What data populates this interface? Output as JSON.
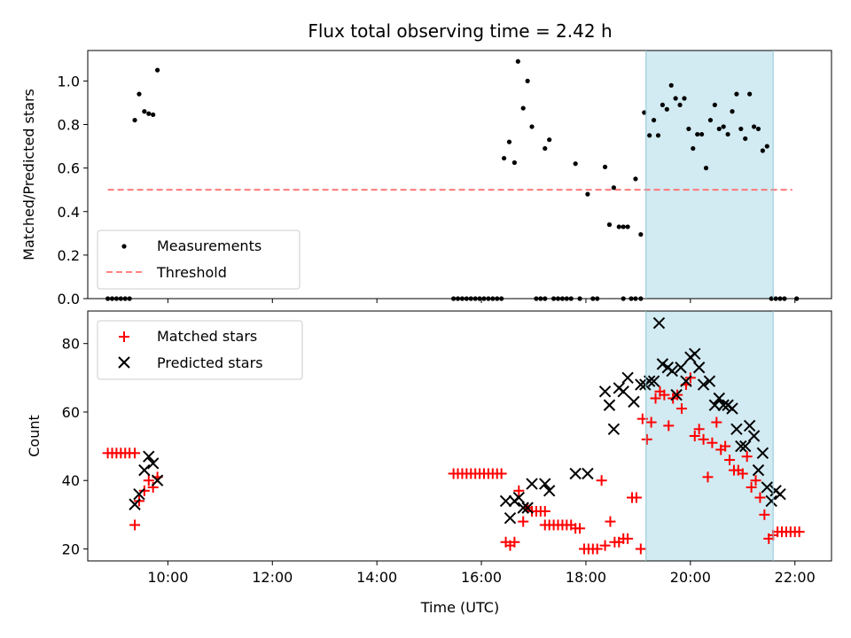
{
  "title": "Flux total observing time = 2.42 h",
  "xlabel": "Time (UTC)",
  "x_ticks": [
    "10:00",
    "12:00",
    "14:00",
    "16:00",
    "18:00",
    "20:00",
    "22:00"
  ],
  "colors": {
    "measurements": "#000000",
    "threshold": "#ff7070",
    "matched": "#ff0000",
    "predicted": "#000000",
    "highlight": "#add8e6"
  },
  "chart_data": [
    {
      "type": "scatter",
      "ylabel": "Matched/Predicted stars",
      "xlim": [
        "08:28",
        "22:42"
      ],
      "ylim": [
        0,
        1.14
      ],
      "y_ticks": [
        "0.0",
        "0.2",
        "0.4",
        "0.6",
        "0.8",
        "1.0"
      ],
      "highlight_span": [
        "19:09",
        "21:35"
      ],
      "legend": {
        "position": "lower-left",
        "entries": [
          "Measurements",
          "Threshold"
        ]
      },
      "threshold": {
        "name": "Threshold",
        "y": 0.5,
        "x_range": [
          "08:51",
          "21:57"
        ]
      },
      "series": [
        {
          "name": "Measurements",
          "points": [
            [
              "08:51",
              0
            ],
            [
              "08:56",
              0
            ],
            [
              "09:01",
              0
            ],
            [
              "09:06",
              0
            ],
            [
              "09:11",
              0
            ],
            [
              "09:16",
              0
            ],
            [
              "09:22",
              0.82
            ],
            [
              "09:27",
              0.94
            ],
            [
              "09:33",
              0.86
            ],
            [
              "09:38",
              0.85
            ],
            [
              "09:43",
              0.845
            ],
            [
              "09:48",
              1.05
            ],
            [
              "15:28",
              0
            ],
            [
              "15:33",
              0
            ],
            [
              "15:38",
              0
            ],
            [
              "15:43",
              0
            ],
            [
              "15:48",
              0
            ],
            [
              "15:53",
              0
            ],
            [
              "15:58",
              0
            ],
            [
              "16:03",
              0
            ],
            [
              "16:08",
              0
            ],
            [
              "16:13",
              0
            ],
            [
              "16:18",
              0
            ],
            [
              "16:23",
              0
            ],
            [
              "16:26",
              0.645
            ],
            [
              "16:32",
              0.72
            ],
            [
              "16:38",
              0.625
            ],
            [
              "16:42",
              1.09
            ],
            [
              "16:48",
              0.875
            ],
            [
              "16:53",
              1.0
            ],
            [
              "16:58",
              0.79
            ],
            [
              "17:03",
              0
            ],
            [
              "17:08",
              0
            ],
            [
              "17:13",
              0
            ],
            [
              "17:13",
              0.69
            ],
            [
              "17:18",
              0.73
            ],
            [
              "17:23",
              0
            ],
            [
              "17:28",
              0
            ],
            [
              "17:33",
              0
            ],
            [
              "17:38",
              0
            ],
            [
              "17:43",
              0
            ],
            [
              "17:53",
              0
            ],
            [
              "17:48",
              0.62
            ],
            [
              "18:02",
              0.48
            ],
            [
              "18:08",
              0
            ],
            [
              "18:13",
              0
            ],
            [
              "18:22",
              0.605
            ],
            [
              "18:27",
              0.34
            ],
            [
              "18:32",
              0.51
            ],
            [
              "18:38",
              0.33
            ],
            [
              "18:43",
              0.33
            ],
            [
              "18:48",
              0.33
            ],
            [
              "18:43",
              0
            ],
            [
              "18:52",
              0
            ],
            [
              "18:57",
              0
            ],
            [
              "19:03",
              0
            ],
            [
              "18:57",
              0.55
            ],
            [
              "19:03",
              0.295
            ],
            [
              "19:07",
              0.855
            ],
            [
              "19:13",
              0.75
            ],
            [
              "19:18",
              0.82
            ],
            [
              "19:23",
              0.75
            ],
            [
              "19:28",
              0.89
            ],
            [
              "19:33",
              0.87
            ],
            [
              "19:38",
              0.98
            ],
            [
              "19:43",
              0.92
            ],
            [
              "19:48",
              0.89
            ],
            [
              "19:53",
              0.92
            ],
            [
              "19:58",
              0.78
            ],
            [
              "20:03",
              0.69
            ],
            [
              "20:08",
              0.755
            ],
            [
              "20:13",
              0.755
            ],
            [
              "20:18",
              0.6
            ],
            [
              "20:23",
              0.82
            ],
            [
              "20:28",
              0.89
            ],
            [
              "20:33",
              0.78
            ],
            [
              "20:38",
              0.79
            ],
            [
              "20:43",
              0.755
            ],
            [
              "20:48",
              0.86
            ],
            [
              "20:53",
              0.94
            ],
            [
              "20:58",
              0.78
            ],
            [
              "21:03",
              0.735
            ],
            [
              "21:08",
              0.94
            ],
            [
              "21:13",
              0.79
            ],
            [
              "21:18",
              0.78
            ],
            [
              "21:23",
              0.68
            ],
            [
              "21:28",
              0.7
            ],
            [
              "21:33",
              0
            ],
            [
              "21:38",
              0
            ],
            [
              "21:43",
              0
            ],
            [
              "21:48",
              0
            ],
            [
              "22:02",
              0
            ]
          ]
        }
      ]
    },
    {
      "type": "scatter",
      "ylabel": "Count",
      "xlim": [
        "08:28",
        "22:42"
      ],
      "ylim": [
        16.5,
        89.5
      ],
      "y_ticks": [
        "20",
        "40",
        "60",
        "80"
      ],
      "highlight_span": [
        "19:09",
        "21:35"
      ],
      "legend": {
        "position": "upper-left",
        "entries": [
          "Matched stars",
          "Predicted stars"
        ]
      },
      "series": [
        {
          "name": "Matched stars",
          "points": [
            [
              "08:51",
              48
            ],
            [
              "08:56",
              48
            ],
            [
              "09:01",
              48
            ],
            [
              "09:06",
              48
            ],
            [
              "09:11",
              48
            ],
            [
              "09:16",
              48
            ],
            [
              "09:22",
              48
            ],
            [
              "09:22",
              27
            ],
            [
              "09:27",
              34
            ],
            [
              "09:33",
              37
            ],
            [
              "09:38",
              40
            ],
            [
              "09:43",
              38
            ],
            [
              "09:48",
              41
            ],
            [
              "15:28",
              42
            ],
            [
              "15:33",
              42
            ],
            [
              "15:38",
              42
            ],
            [
              "15:43",
              42
            ],
            [
              "15:48",
              42
            ],
            [
              "15:53",
              42
            ],
            [
              "15:58",
              42
            ],
            [
              "16:03",
              42
            ],
            [
              "16:08",
              42
            ],
            [
              "16:13",
              42
            ],
            [
              "16:18",
              42
            ],
            [
              "16:23",
              42
            ],
            [
              "16:28",
              22
            ],
            [
              "16:33",
              21
            ],
            [
              "16:38",
              22
            ],
            [
              "16:43",
              37
            ],
            [
              "16:48",
              28
            ],
            [
              "16:53",
              32
            ],
            [
              "16:58",
              31
            ],
            [
              "17:03",
              31
            ],
            [
              "17:08",
              31
            ],
            [
              "17:13",
              31
            ],
            [
              "17:13",
              27
            ],
            [
              "17:18",
              27
            ],
            [
              "17:23",
              27
            ],
            [
              "17:28",
              27
            ],
            [
              "17:33",
              27
            ],
            [
              "17:38",
              27
            ],
            [
              "17:43",
              27
            ],
            [
              "17:48",
              26
            ],
            [
              "17:53",
              26
            ],
            [
              "17:58",
              20
            ],
            [
              "18:03",
              20
            ],
            [
              "18:08",
              20
            ],
            [
              "18:13",
              20
            ],
            [
              "18:18",
              40
            ],
            [
              "18:22",
              21
            ],
            [
              "18:28",
              28
            ],
            [
              "18:33",
              22
            ],
            [
              "18:38",
              22
            ],
            [
              "18:43",
              23
            ],
            [
              "18:48",
              23
            ],
            [
              "18:53",
              35
            ],
            [
              "18:58",
              35
            ],
            [
              "19:03",
              20
            ],
            [
              "19:05",
              58
            ],
            [
              "19:10",
              52
            ],
            [
              "19:15",
              57
            ],
            [
              "19:20",
              64
            ],
            [
              "19:25",
              66
            ],
            [
              "19:30",
              65
            ],
            [
              "19:35",
              56
            ],
            [
              "19:40",
              64
            ],
            [
              "19:45",
              65
            ],
            [
              "19:50",
              61
            ],
            [
              "19:55",
              68
            ],
            [
              "20:00",
              70
            ],
            [
              "20:05",
              53
            ],
            [
              "20:10",
              55
            ],
            [
              "20:15",
              52
            ],
            [
              "20:20",
              41
            ],
            [
              "20:25",
              51
            ],
            [
              "20:30",
              57
            ],
            [
              "20:35",
              49
            ],
            [
              "20:40",
              50
            ],
            [
              "20:45",
              46
            ],
            [
              "20:50",
              43
            ],
            [
              "20:55",
              43
            ],
            [
              "21:00",
              42
            ],
            [
              "21:05",
              47
            ],
            [
              "21:10",
              38
            ],
            [
              "21:15",
              40
            ],
            [
              "21:20",
              35
            ],
            [
              "21:25",
              30
            ],
            [
              "21:30",
              23
            ],
            [
              "21:35",
              24
            ],
            [
              "21:40",
              25
            ],
            [
              "21:45",
              25
            ],
            [
              "21:50",
              25
            ],
            [
              "21:55",
              25
            ],
            [
              "22:00",
              25
            ],
            [
              "22:05",
              25
            ]
          ]
        },
        {
          "name": "Predicted stars",
          "points": [
            [
              "09:22",
              33
            ],
            [
              "09:27",
              36
            ],
            [
              "09:33",
              43
            ],
            [
              "09:38",
              47
            ],
            [
              "09:43",
              45
            ],
            [
              "09:48",
              40
            ],
            [
              "16:28",
              34
            ],
            [
              "16:33",
              29
            ],
            [
              "16:38",
              34
            ],
            [
              "16:43",
              35
            ],
            [
              "16:48",
              32
            ],
            [
              "16:53",
              32
            ],
            [
              "16:58",
              39
            ],
            [
              "17:13",
              39
            ],
            [
              "17:18",
              37
            ],
            [
              "17:48",
              42
            ],
            [
              "18:02",
              42
            ],
            [
              "18:22",
              66
            ],
            [
              "18:27",
              62
            ],
            [
              "18:32",
              55
            ],
            [
              "18:38",
              67
            ],
            [
              "18:43",
              66
            ],
            [
              "18:48",
              70
            ],
            [
              "18:55",
              63
            ],
            [
              "19:03",
              68
            ],
            [
              "19:08",
              68
            ],
            [
              "19:13",
              69
            ],
            [
              "19:18",
              69
            ],
            [
              "19:24",
              86
            ],
            [
              "19:28",
              74
            ],
            [
              "19:34",
              73
            ],
            [
              "19:39",
              72
            ],
            [
              "19:44",
              65
            ],
            [
              "19:49",
              73
            ],
            [
              "19:55",
              69
            ],
            [
              "20:00",
              76
            ],
            [
              "20:05",
              77
            ],
            [
              "20:10",
              73
            ],
            [
              "20:15",
              68
            ],
            [
              "20:22",
              69
            ],
            [
              "20:28",
              62
            ],
            [
              "20:33",
              64
            ],
            [
              "20:38",
              62
            ],
            [
              "20:43",
              62
            ],
            [
              "20:48",
              61
            ],
            [
              "20:53",
              55
            ],
            [
              "20:58",
              50
            ],
            [
              "21:03",
              50
            ],
            [
              "21:08",
              56
            ],
            [
              "21:13",
              53
            ],
            [
              "21:18",
              43
            ],
            [
              "21:23",
              48
            ],
            [
              "21:28",
              38
            ],
            [
              "21:33",
              34
            ],
            [
              "21:38",
              37
            ],
            [
              "21:43",
              36
            ]
          ]
        }
      ]
    }
  ]
}
